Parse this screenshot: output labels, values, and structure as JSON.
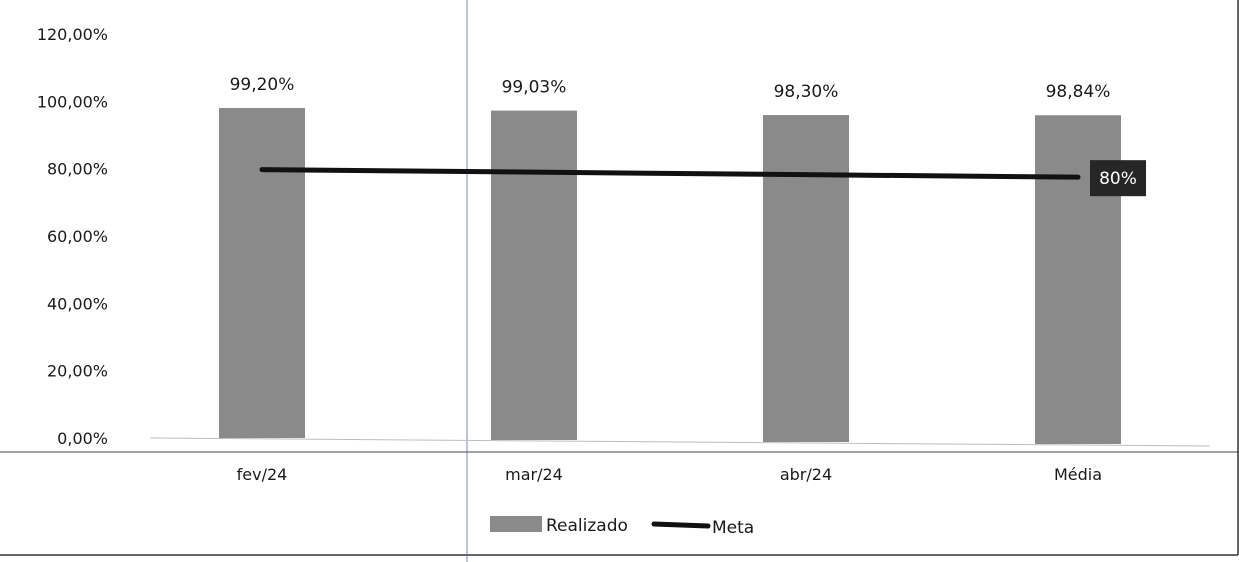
{
  "chart_data": {
    "type": "bar",
    "title": "",
    "xlabel": "",
    "ylabel": "",
    "categories": [
      "fev/24",
      "mar/24",
      "abr/24",
      "Média"
    ],
    "ylim": [
      0,
      120
    ],
    "y_ticks": [
      0,
      20,
      40,
      60,
      80,
      100,
      120
    ],
    "y_tick_labels": [
      "0,00%",
      "20,00%",
      "40,00%",
      "60,00%",
      "80,00%",
      "100,00%",
      "120,00%"
    ],
    "series": [
      {
        "name": "Realizado",
        "kind": "bar",
        "values": [
          99.2,
          99.03,
          98.3,
          98.84
        ],
        "labels": [
          "99,20%",
          "99,03%",
          "98,30%",
          "98,84%"
        ],
        "color": "#8a8a8a"
      },
      {
        "name": "Meta",
        "kind": "line",
        "values": [
          80,
          80,
          80,
          80
        ],
        "end_label": "80%",
        "color": "#111111"
      }
    ],
    "legend_position": "bottom",
    "grid": false
  }
}
